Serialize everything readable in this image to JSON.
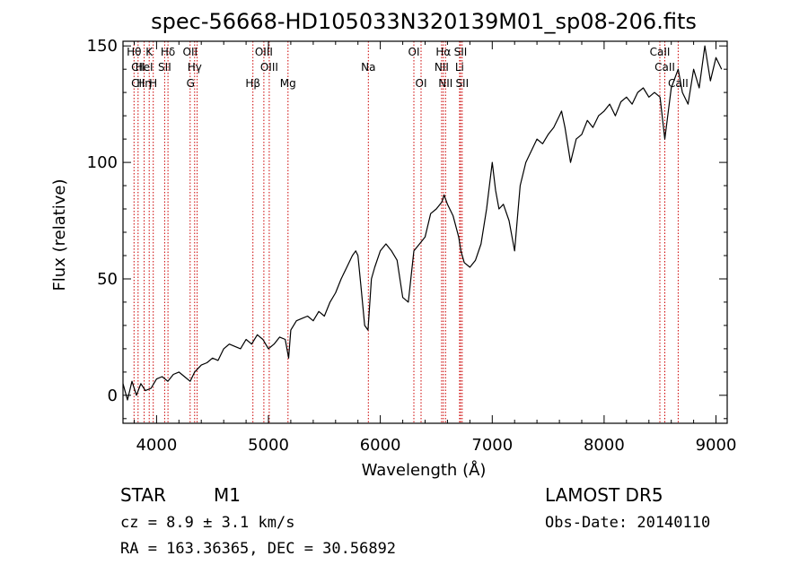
{
  "chart_data": {
    "type": "line",
    "title": "spec-56668-HD105033N320139M01_sp08-206.fits",
    "xlabel": "Wavelength (Å)",
    "ylabel": "Flux (relative)",
    "xlim": [
      3700,
      9100
    ],
    "ylim": [
      -12,
      152
    ],
    "xticks": [
      4000,
      5000,
      6000,
      7000,
      8000,
      9000
    ],
    "yticks": [
      0,
      50,
      100,
      150
    ],
    "x_tick_labels": [
      "4000",
      "5000",
      "6000",
      "7000",
      "8000",
      "9000"
    ],
    "y_tick_labels": [
      "0",
      "50",
      "100",
      "150"
    ],
    "grid": false,
    "series": [
      {
        "x": [
          3700,
          3740,
          3780,
          3820,
          3860,
          3900,
          3950,
          4000,
          4050,
          4100,
          4150,
          4200,
          4250,
          4300,
          4340,
          4400,
          4450,
          4500,
          4550,
          4600,
          4650,
          4700,
          4750,
          4800,
          4850,
          4900,
          4950,
          5000,
          5050,
          5100,
          5150,
          5180,
          5200,
          5250,
          5300,
          5350,
          5400,
          5450,
          5500,
          5550,
          5600,
          5650,
          5700,
          5750,
          5780,
          5800,
          5830,
          5860,
          5890,
          5920,
          5950,
          6000,
          6050,
          6100,
          6150,
          6200,
          6250,
          6300,
          6350,
          6400,
          6450,
          6500,
          6550,
          6570,
          6600,
          6650,
          6700,
          6720,
          6750,
          6800,
          6850,
          6900,
          6950,
          7000,
          7030,
          7060,
          7100,
          7150,
          7200,
          7250,
          7300,
          7350,
          7400,
          7450,
          7500,
          7550,
          7600,
          7620,
          7650,
          7700,
          7750,
          7800,
          7850,
          7900,
          7950,
          8000,
          8050,
          8100,
          8150,
          8200,
          8250,
          8300,
          8350,
          8400,
          8450,
          8500,
          8542,
          8600,
          8662,
          8700,
          8750,
          8800,
          8850,
          8900,
          8950,
          9000,
          9050
        ],
        "y": [
          5,
          -2,
          6,
          0,
          5,
          2,
          3,
          7,
          8,
          6,
          9,
          10,
          8,
          6,
          10,
          13,
          14,
          16,
          15,
          20,
          22,
          21,
          20,
          24,
          22,
          26,
          24,
          20,
          22,
          25,
          24,
          16,
          28,
          32,
          33,
          34,
          32,
          36,
          34,
          40,
          44,
          50,
          55,
          60,
          62,
          60,
          45,
          30,
          28,
          50,
          55,
          62,
          65,
          62,
          58,
          42,
          40,
          62,
          65,
          68,
          78,
          80,
          83,
          86,
          82,
          77,
          68,
          62,
          57,
          55,
          58,
          65,
          80,
          100,
          88,
          80,
          82,
          75,
          62,
          90,
          100,
          105,
          110,
          108,
          112,
          115,
          120,
          122,
          115,
          100,
          110,
          112,
          118,
          115,
          120,
          122,
          125,
          120,
          126,
          128,
          125,
          130,
          132,
          128,
          130,
          128,
          110,
          132,
          140,
          130,
          125,
          140,
          132,
          150,
          135,
          145,
          140
        ]
      }
    ],
    "line_labels": [
      {
        "wl": 3799,
        "row": 1,
        "text": "Hθ"
      },
      {
        "wl": 3835,
        "row": 2,
        "text": "CII"
      },
      {
        "wl": 3835,
        "row": 3,
        "text": "CII"
      },
      {
        "wl": 3889,
        "row": 3,
        "text": "Hη"
      },
      {
        "wl": 3934,
        "row": 1,
        "text": "K"
      },
      {
        "wl": 3889,
        "row": 2,
        "text": "HeI"
      },
      {
        "wl": 3970,
        "row": 3,
        "text": "H"
      },
      {
        "wl": 4102,
        "row": 1,
        "text": "Hδ"
      },
      {
        "wl": 4072,
        "row": 2,
        "text": "SII"
      },
      {
        "wl": 4300,
        "row": 1,
        "text": "OII"
      },
      {
        "wl": 4340,
        "row": 2,
        "text": "Hγ"
      },
      {
        "wl": 4304,
        "row": 3,
        "text": "G"
      },
      {
        "wl": 4861,
        "row": 3,
        "text": "Hβ"
      },
      {
        "wl": 4959,
        "row": 1,
        "text": "OIII"
      },
      {
        "wl": 5007,
        "row": 2,
        "text": "OIII"
      },
      {
        "wl": 5175,
        "row": 3,
        "text": "Mg"
      },
      {
        "wl": 5893,
        "row": 2,
        "text": "Na"
      },
      {
        "wl": 6300,
        "row": 1,
        "text": "OI"
      },
      {
        "wl": 6364,
        "row": 3,
        "text": "OI"
      },
      {
        "wl": 6563,
        "row": 1,
        "text": "Hα"
      },
      {
        "wl": 6548,
        "row": 2,
        "text": "NII"
      },
      {
        "wl": 6583,
        "row": 3,
        "text": "NII"
      },
      {
        "wl": 6717,
        "row": 1,
        "text": "SII"
      },
      {
        "wl": 6708,
        "row": 2,
        "text": "Li"
      },
      {
        "wl": 6731,
        "row": 3,
        "text": "SII"
      },
      {
        "wl": 8498,
        "row": 1,
        "text": "CaII"
      },
      {
        "wl": 8542,
        "row": 2,
        "text": "CaII"
      },
      {
        "wl": 8662,
        "row": 3,
        "text": "CaII"
      }
    ],
    "line_marks": [
      3799,
      3835,
      3889,
      3934,
      3970,
      4072,
      4102,
      4300,
      4340,
      4363,
      4861,
      4959,
      5007,
      5175,
      5893,
      6300,
      6364,
      6548,
      6563,
      6583,
      6708,
      6717,
      6731,
      8498,
      8542,
      8662
    ],
    "line_mark_color": "#cc0000"
  },
  "info": {
    "object": "STAR",
    "subclass": "M1",
    "survey": "LAMOST  DR5",
    "cz": "cz = 8.9 ± 3.1 km/s",
    "obs_date": "Obs-Date: 20140110",
    "radec": "RA = 163.36365, DEC =  30.56892"
  }
}
